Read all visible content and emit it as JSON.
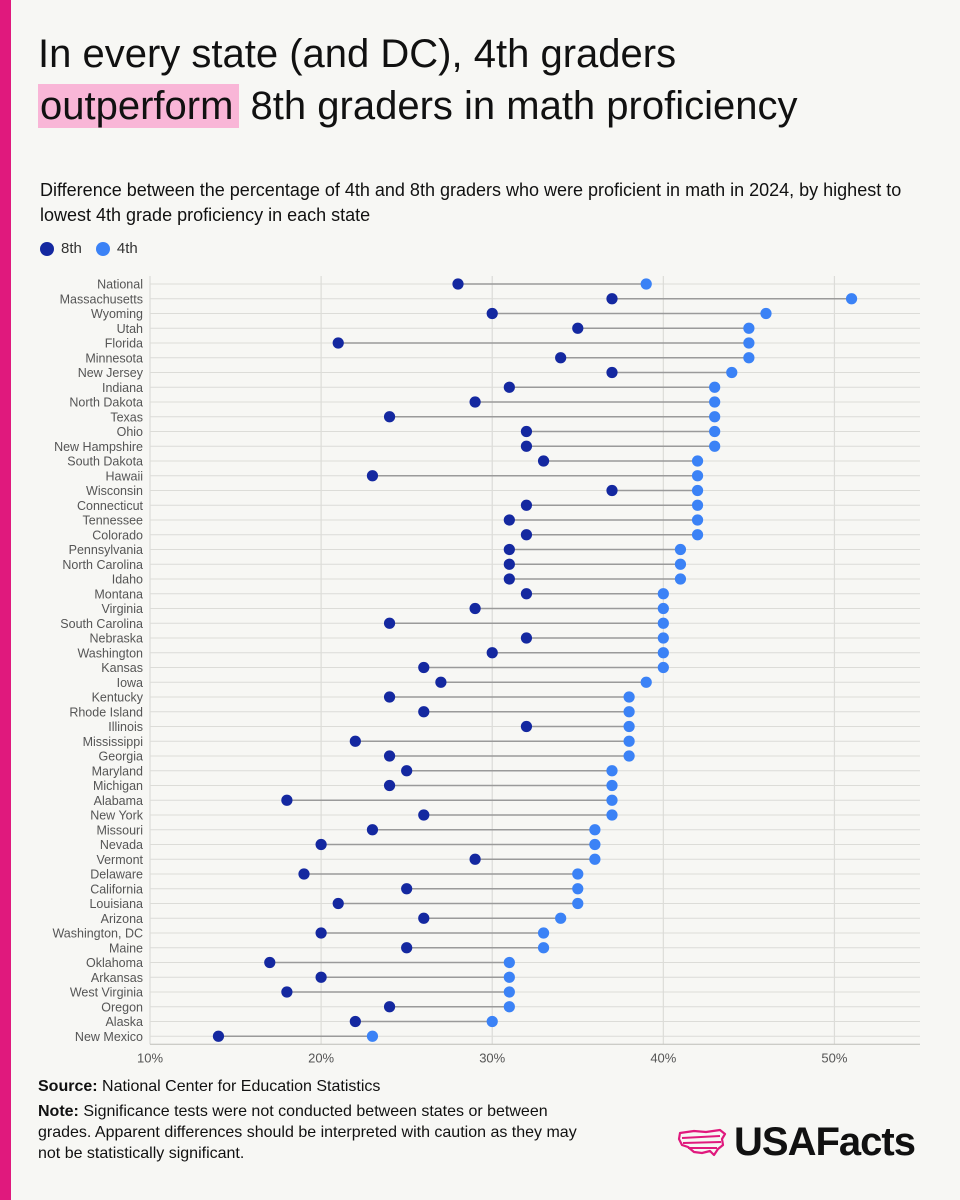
{
  "title": {
    "before": "In every state (and DC), 4th graders",
    "highlight": "outperform",
    "after": "8th graders in math proficiency"
  },
  "subtitle": "Difference between the percentage of 4th and 8th graders who were proficient in math in 2024, by highest to lowest 4th grade proficiency in each state",
  "legend": [
    {
      "label": "8th",
      "color": "#1428a0"
    },
    {
      "label": "4th",
      "color": "#3b82f6"
    }
  ],
  "colors": {
    "accent": "#e0197d",
    "highlight": "#f9b6d7",
    "grid": "#dcdcd8",
    "connector": "#9a9a9a"
  },
  "chart_data": {
    "type": "scatter",
    "xlim": [
      10,
      55
    ],
    "xticks": [
      10,
      20,
      30,
      40,
      50
    ],
    "xtick_labels": [
      "10%",
      "20%",
      "30%",
      "40%",
      "50%"
    ],
    "grid": true,
    "categories": [
      "National",
      "Massachusetts",
      "Wyoming",
      "Utah",
      "Florida",
      "Minnesota",
      "New Jersey",
      "Indiana",
      "North Dakota",
      "Texas",
      "Ohio",
      "New Hampshire",
      "South Dakota",
      "Hawaii",
      "Wisconsin",
      "Connecticut",
      "Tennessee",
      "Colorado",
      "Pennsylvania",
      "North Carolina",
      "Idaho",
      "Montana",
      "Virginia",
      "South Carolina",
      "Nebraska",
      "Washington",
      "Kansas",
      "Iowa",
      "Kentucky",
      "Rhode Island",
      "Illinois",
      "Mississippi",
      "Georgia",
      "Maryland",
      "Michigan",
      "Alabama",
      "New York",
      "Missouri",
      "Nevada",
      "Vermont",
      "Delaware",
      "California",
      "Louisiana",
      "Arizona",
      "Washington, DC",
      "Maine",
      "Oklahoma",
      "Arkansas",
      "West Virginia",
      "Oregon",
      "Alaska",
      "New Mexico"
    ],
    "series": [
      {
        "name": "8th",
        "values": [
          28,
          37,
          30,
          35,
          21,
          34,
          37,
          31,
          29,
          24,
          32,
          32,
          33,
          23,
          37,
          32,
          31,
          32,
          31,
          31,
          31,
          32,
          29,
          24,
          32,
          30,
          26,
          27,
          24,
          26,
          32,
          22,
          24,
          25,
          24,
          18,
          26,
          23,
          20,
          29,
          19,
          25,
          21,
          26,
          20,
          25,
          17,
          20,
          18,
          24,
          22,
          14
        ]
      },
      {
        "name": "4th",
        "values": [
          39,
          51,
          46,
          45,
          45,
          45,
          44,
          43,
          43,
          43,
          43,
          43,
          42,
          42,
          42,
          42,
          42,
          42,
          41,
          41,
          41,
          40,
          40,
          40,
          40,
          40,
          40,
          39,
          38,
          38,
          38,
          38,
          38,
          37,
          37,
          37,
          37,
          36,
          36,
          36,
          35,
          35,
          35,
          34,
          33,
          33,
          31,
          31,
          31,
          31,
          30,
          23
        ]
      }
    ]
  },
  "footer": {
    "source_label": "Source:",
    "source_text": "National Center for Education Statistics",
    "note_label": "Note:",
    "note_text": "Significance tests were not conducted between states or between grades. Apparent differences should be interpreted with caution as they may not be statistically significant."
  },
  "logo": {
    "text": "USAFacts"
  }
}
